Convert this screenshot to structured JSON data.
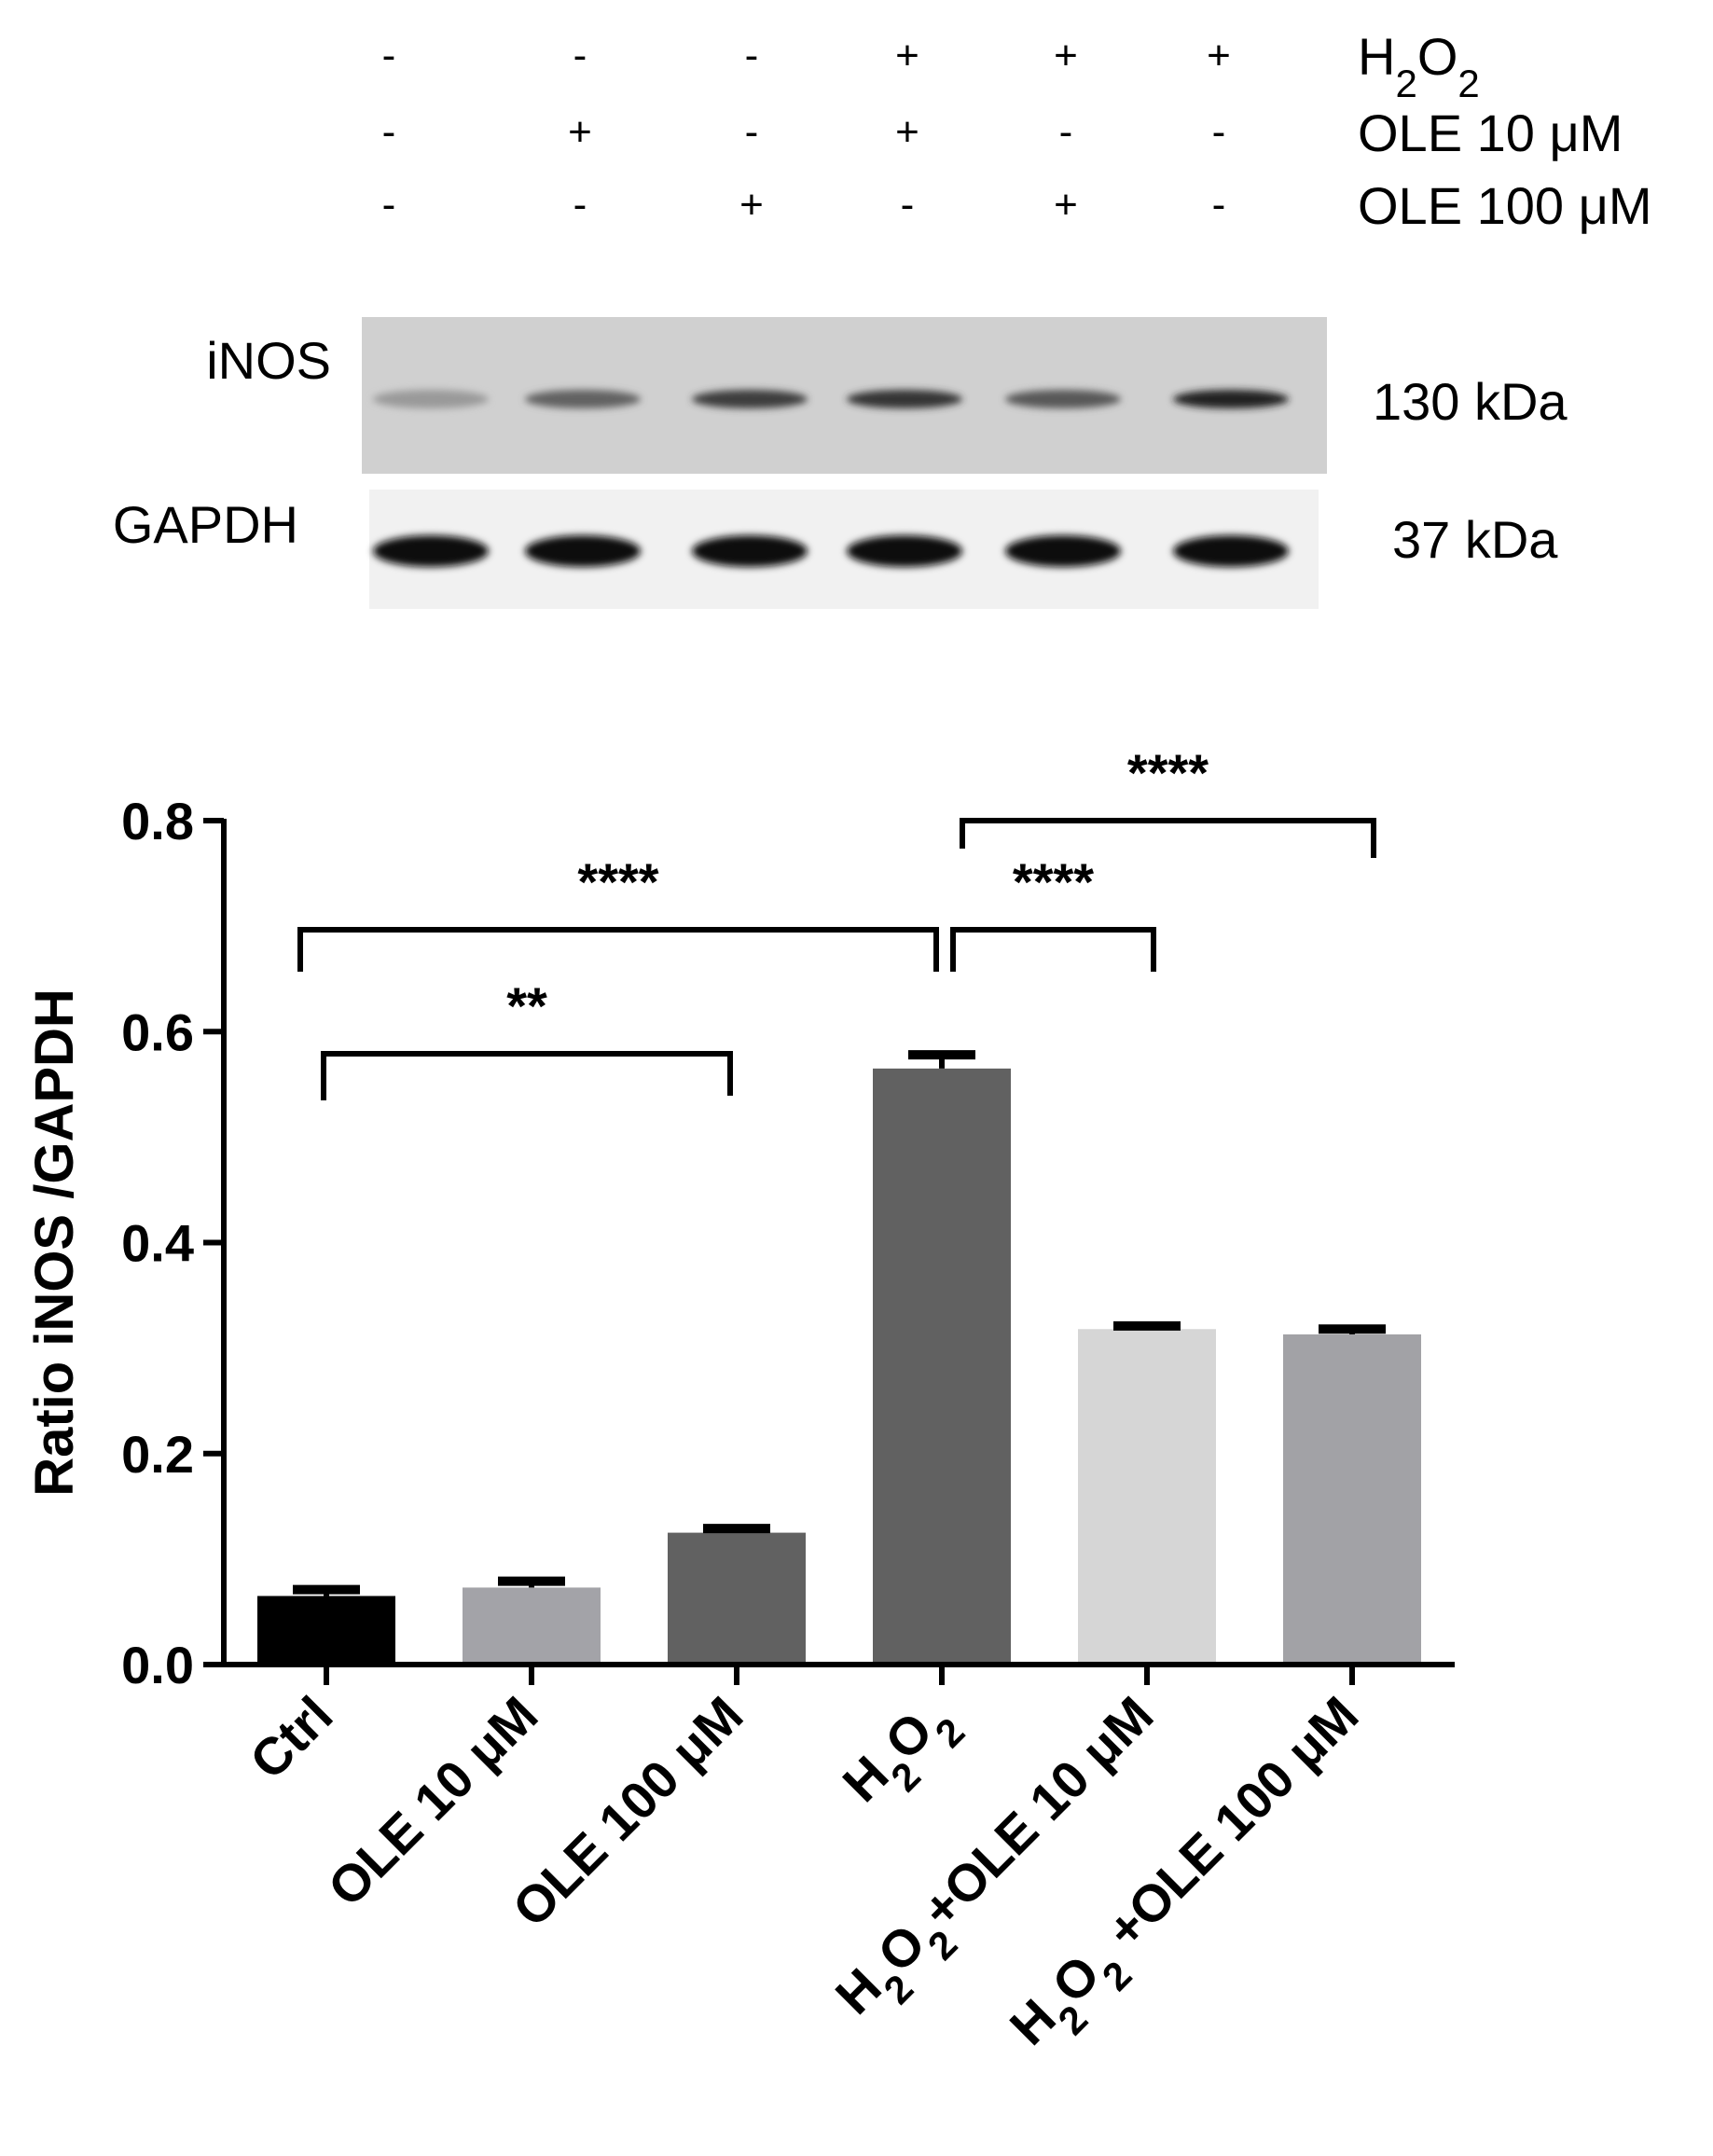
{
  "treatments": {
    "rows": [
      {
        "name": "H2O2",
        "signs": [
          "-",
          "-",
          "-",
          "+",
          "+",
          "+"
        ]
      },
      {
        "name": "OLE 10 μM",
        "signs": [
          "-",
          "+",
          "-",
          "+",
          "-",
          "-"
        ]
      },
      {
        "name": "OLE 100 μM",
        "signs": [
          "-",
          "-",
          "+",
          "-",
          "+",
          "-"
        ]
      }
    ]
  },
  "blots": [
    {
      "label": "iNOS",
      "mw": "130 kDa",
      "background": "#d0d0d0",
      "band_intensity": [
        0.25,
        0.55,
        0.75,
        0.8,
        0.6,
        0.9
      ]
    },
    {
      "label": "GAPDH",
      "mw": "37 kDa",
      "background": "#f1f1f1",
      "band_intensity": [
        1.0,
        1.0,
        1.0,
        1.0,
        1.0,
        1.0
      ]
    }
  ],
  "chart_data": {
    "type": "bar",
    "title": "",
    "xlabel": "",
    "ylabel": "Ratio iNOS /GAPDH",
    "ylim": [
      0,
      0.8
    ],
    "yticks": [
      "0.0",
      "0.2",
      "0.4",
      "0.6",
      "0.8"
    ],
    "categories": [
      "Ctrl",
      "OLE 10 μM",
      "OLE 100 μM",
      "H2O2",
      "H2O2+OLE 10 μM",
      "H2O2 +OLE 100 μM"
    ],
    "values": [
      0.065,
      0.073,
      0.125,
      0.565,
      0.318,
      0.313
    ],
    "errors": [
      0.006,
      0.006,
      0.004,
      0.013,
      0.003,
      0.005
    ],
    "colors": [
      "#000000",
      "#a3a3a8",
      "#616161",
      "#616161",
      "#d6d6d6",
      "#a2a2a6"
    ],
    "significance": [
      {
        "from": 0,
        "to": 2,
        "label": "**"
      },
      {
        "from": 0,
        "to": 3,
        "label": "****"
      },
      {
        "from": 3,
        "to": 4,
        "label": "****"
      },
      {
        "from": 3,
        "to": 5,
        "label": "****"
      }
    ]
  }
}
